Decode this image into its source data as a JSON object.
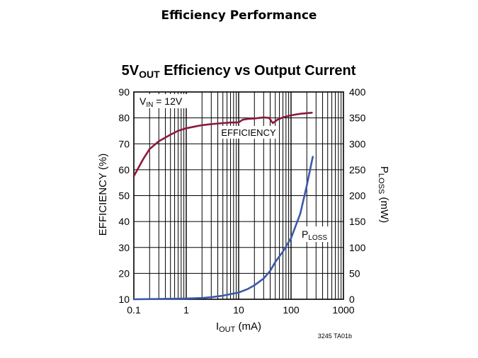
{
  "slide": {
    "title": "Efficiency Performance"
  },
  "chart_data": {
    "type": "line",
    "title": "5V",
    "title_sub": "OUT",
    "title_rest": " Efficiency vs Output Current",
    "xlabel": "I",
    "xlabel_sub": "OUT",
    "xlabel_rest": " (mA)",
    "ylabel_left": "EFFICIENCY (%)",
    "ylabel_right": "P",
    "ylabel_right_sub": "LOSS",
    "ylabel_right_rest": " (mW)",
    "x_scale": "log",
    "xlim": [
      0.1,
      1000
    ],
    "ylim_left": [
      10,
      90
    ],
    "ylim_right": [
      0,
      400
    ],
    "grid": true,
    "x_tick_labels": [
      "0.1",
      "1",
      "10",
      "100",
      "1000"
    ],
    "y_left_tick_labels": [
      "90",
      "80",
      "70",
      "60",
      "50",
      "40",
      "30",
      "20",
      "10"
    ],
    "y_right_tick_labels": [
      "400",
      "350",
      "300",
      "250",
      "200",
      "150",
      "100",
      "50",
      "0"
    ],
    "condition": {
      "prefix": "V",
      "sub": "IN",
      "rest": " = 12V"
    },
    "figure_id": "3245 TA01b",
    "series": [
      {
        "name": "EFFICIENCY",
        "axis": "left",
        "color": "#8b1a3a",
        "points": [
          [
            0.1,
            57.5
          ],
          [
            0.15,
            64
          ],
          [
            0.2,
            68
          ],
          [
            0.3,
            71
          ],
          [
            0.5,
            73.5
          ],
          [
            0.7,
            75
          ],
          [
            1,
            76
          ],
          [
            1.5,
            76.7
          ],
          [
            2,
            77.2
          ],
          [
            3,
            77.6
          ],
          [
            5,
            78
          ],
          [
            7,
            78.2
          ],
          [
            10,
            78.3
          ],
          [
            12,
            79.3
          ],
          [
            15,
            79.6
          ],
          [
            20,
            79.8
          ],
          [
            30,
            80.2
          ],
          [
            38,
            80
          ],
          [
            45,
            78
          ],
          [
            55,
            79.3
          ],
          [
            70,
            80.2
          ],
          [
            100,
            81
          ],
          [
            150,
            81.6
          ],
          [
            250,
            82
          ]
        ]
      },
      {
        "name": "P",
        "name_sub": "LOSS",
        "axis": "right",
        "color": "#3a5aa8",
        "points": [
          [
            0.1,
            0
          ],
          [
            0.3,
            0.5
          ],
          [
            1,
            1.5
          ],
          [
            2,
            2.5
          ],
          [
            3,
            4
          ],
          [
            5,
            7
          ],
          [
            8,
            11
          ],
          [
            10,
            13
          ],
          [
            15,
            20
          ],
          [
            20,
            27
          ],
          [
            30,
            40
          ],
          [
            40,
            55
          ],
          [
            50,
            72
          ],
          [
            70,
            92
          ],
          [
            100,
            118
          ],
          [
            150,
            165
          ],
          [
            200,
            220
          ],
          [
            260,
            275
          ]
        ]
      }
    ]
  }
}
